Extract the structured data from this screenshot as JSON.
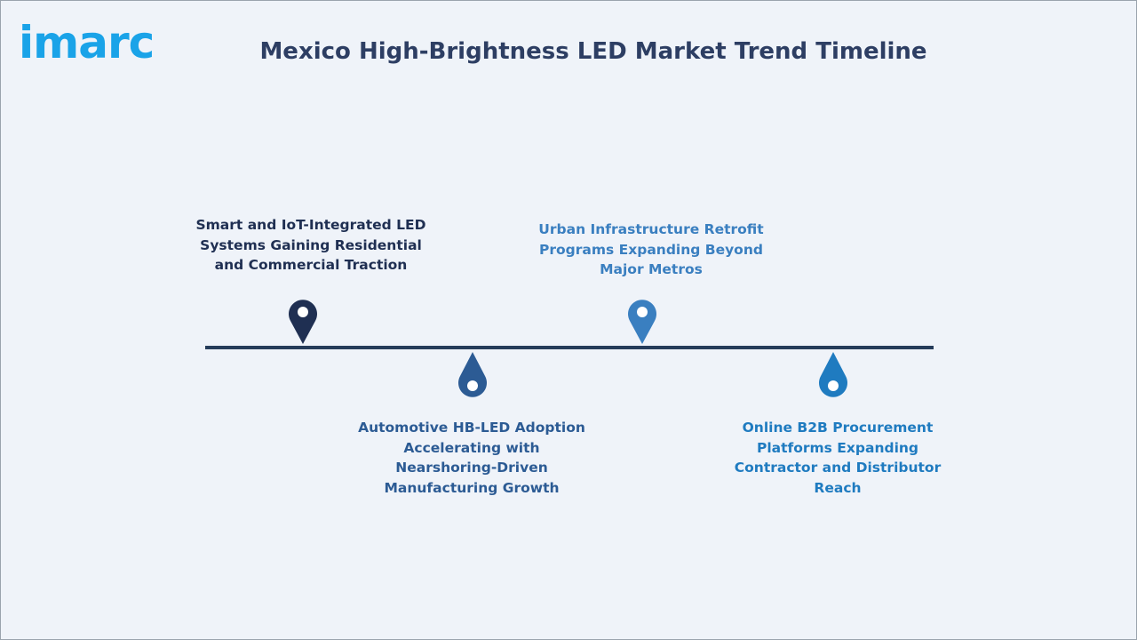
{
  "brand": {
    "logo_text": "imarc"
  },
  "title": "Mexico High-Brightness LED Market Trend Timeline",
  "colors": {
    "background": "#eff3f9",
    "line": "#253c5a",
    "title": "#2d3e63",
    "logo": "#1aa3e8",
    "milestone_1": "#1f2f52",
    "milestone_2": "#2c5b94",
    "milestone_3": "#3a7fc0",
    "milestone_4": "#1f7bc0"
  },
  "milestones": [
    {
      "label": "Smart and IoT-Integrated LED Systems Gaining Residential and Commercial Traction",
      "position": "above",
      "icon": "map-pin-icon"
    },
    {
      "label": "Automotive HB-LED Adoption Accelerating with Nearshoring-Driven Manufacturing Growth",
      "position": "below",
      "icon": "droplet-icon"
    },
    {
      "label": "Urban Infrastructure Retrofit Programs Expanding Beyond Major Metros",
      "position": "above",
      "icon": "map-pin-icon"
    },
    {
      "label": "Online B2B Procurement Platforms Expanding Contractor and Distributor Reach",
      "position": "below",
      "icon": "droplet-icon"
    }
  ]
}
